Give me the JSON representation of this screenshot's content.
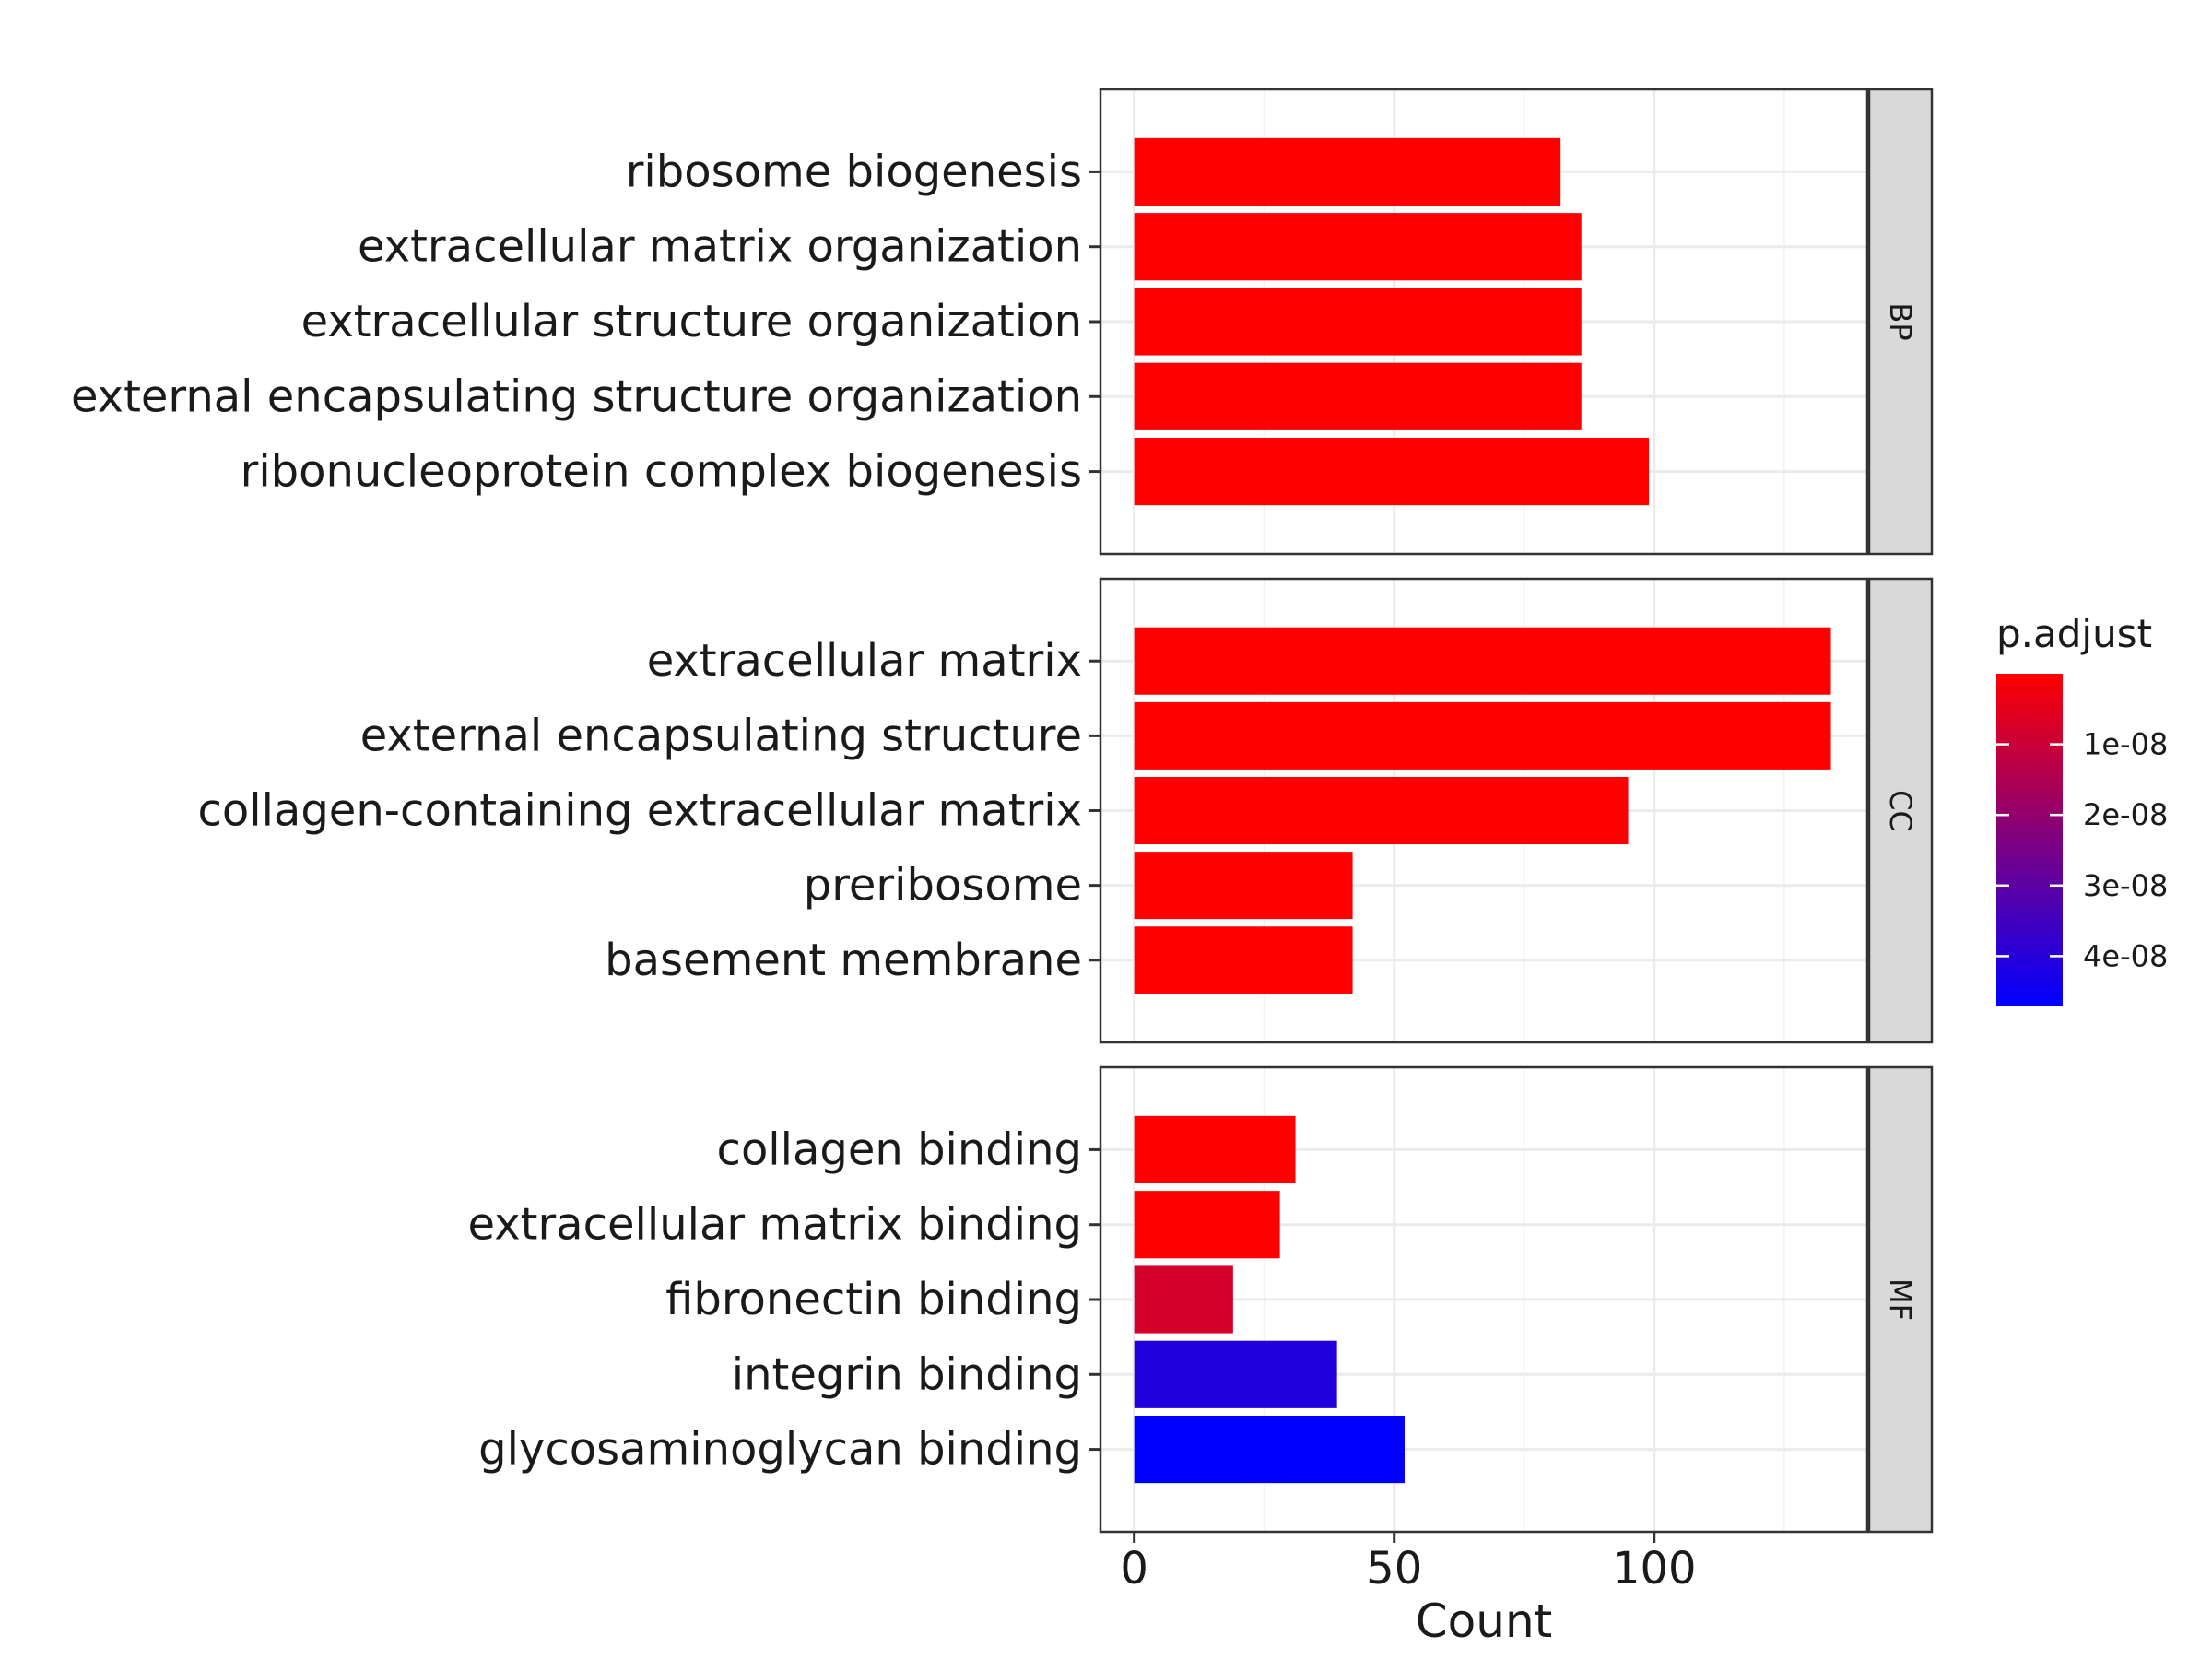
{
  "chart_data": {
    "type": "bar",
    "orientation": "horizontal",
    "xlabel": "Count",
    "xlim": [
      -6.5,
      141
    ],
    "x_ticks": [
      0,
      50,
      100
    ],
    "grid": true,
    "facet_strip_position": "right",
    "facets": [
      {
        "name": "BP",
        "categories": [
          "ribosome biogenesis",
          "extracellular matrix organization",
          "extracellular structure organization",
          "external encapsulating structure organization",
          "ribonucleoprotein complex biogenesis"
        ],
        "values": [
          82,
          86,
          86,
          86,
          99
        ],
        "p_adjust": [
          1e-12,
          1e-12,
          1e-12,
          1e-12,
          1e-12
        ]
      },
      {
        "name": "CC",
        "categories": [
          "extracellular matrix",
          "external encapsulating structure",
          "collagen-containing extracellular matrix",
          "preribosome",
          "basement membrane"
        ],
        "values": [
          134,
          134,
          95,
          42,
          42
        ],
        "p_adjust": [
          1e-12,
          1e-12,
          1e-12,
          1e-12,
          1e-12
        ]
      },
      {
        "name": "MF",
        "categories": [
          "collagen binding",
          "extracellular matrix binding",
          "fibronectin binding",
          "integrin binding",
          "glycosaminoglycan binding"
        ],
        "values": [
          31,
          28,
          19,
          39,
          52
        ],
        "p_adjust": [
          1e-12,
          1e-12,
          8e-09,
          4.1e-08,
          4.7e-08
        ]
      }
    ],
    "legend": {
      "title": "p.adjust",
      "placement": "right",
      "range": [
        0,
        4.7e-08
      ],
      "low_color": "#ff0000",
      "high_color": "#0000ff",
      "ticks": [
        1e-08,
        2e-08,
        3e-08,
        4e-08
      ],
      "tick_labels": [
        "1e-08",
        "2e-08",
        "3e-08",
        "4e-08"
      ]
    }
  }
}
